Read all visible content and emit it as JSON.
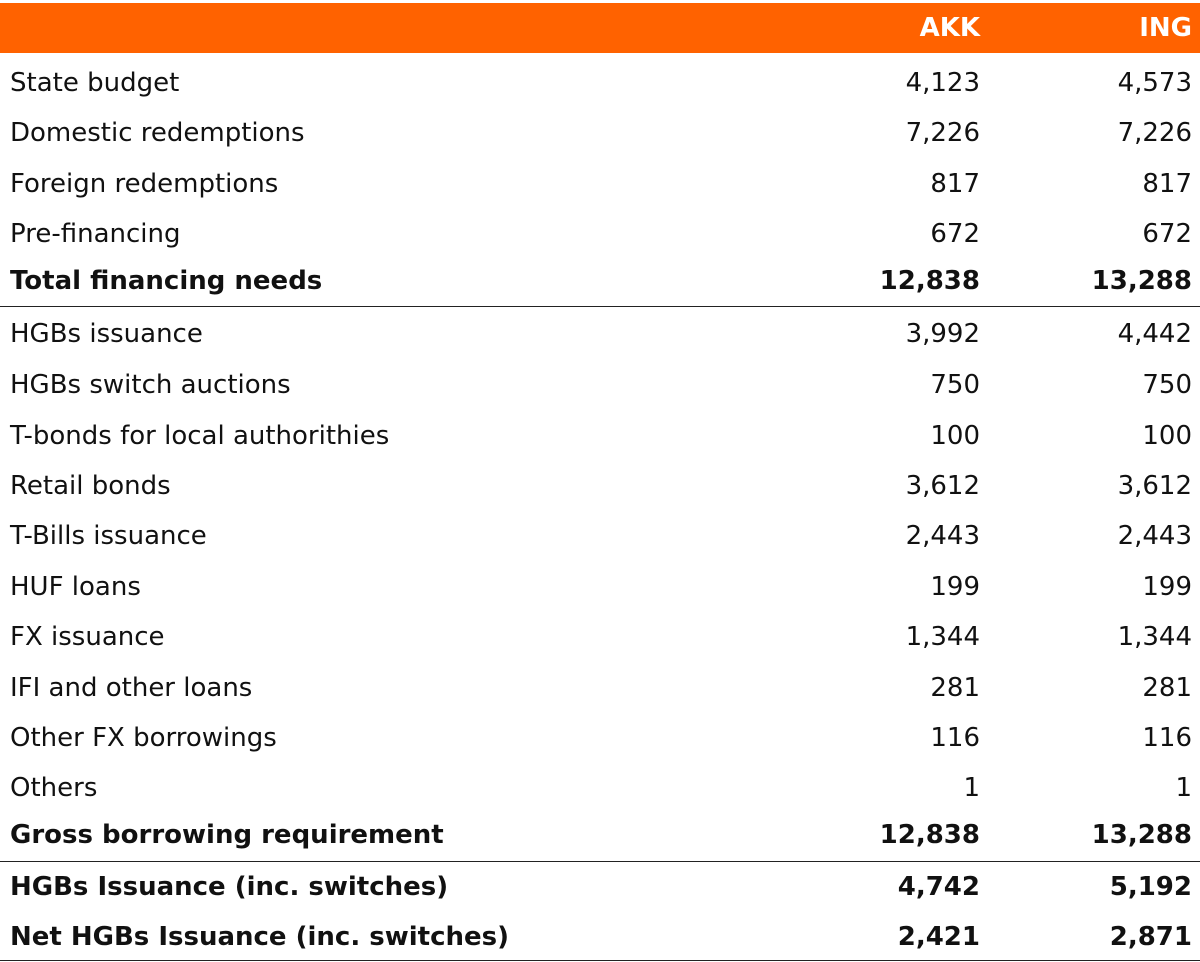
{
  "table": {
    "columns": [
      "AKK",
      "ING"
    ],
    "rows": [
      [
        "State budget",
        "4,123",
        "4,573"
      ],
      [
        "Domestic redemptions",
        "7,226",
        "7,226"
      ],
      [
        "Foreign redemptions",
        "817",
        "817"
      ],
      [
        "Pre-financing",
        "672",
        "672"
      ],
      [
        "Total financing needs",
        "12,838",
        "13,288"
      ],
      [
        "HGBs issuance",
        "3,992",
        "4,442"
      ],
      [
        "HGBs switch auctions",
        "750",
        "750"
      ],
      [
        "T-bonds for local authorithies",
        "100",
        "100"
      ],
      [
        "Retail bonds",
        "3,612",
        "3,612"
      ],
      [
        "T-Bills issuance",
        "2,443",
        "2,443"
      ],
      [
        "HUF loans",
        "199",
        "199"
      ],
      [
        "FX issuance",
        "1,344",
        "1,344"
      ],
      [
        "IFI and other loans",
        "281",
        "281"
      ],
      [
        "Other FX borrowings",
        "116",
        "116"
      ],
      [
        "Others",
        "1",
        "1"
      ],
      [
        "Gross borrowing requirement",
        "12,838",
        "13,288"
      ],
      [
        "HGBs Issuance (inc. switches)",
        "4,742",
        "5,192"
      ],
      [
        "Net HGBs Issuance (inc. switches)",
        "2,421",
        "2,871"
      ]
    ]
  }
}
